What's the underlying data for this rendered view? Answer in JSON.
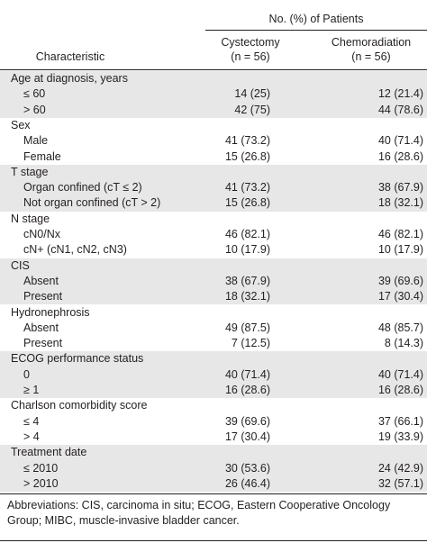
{
  "header": {
    "group_label": "No. (%) of Patients",
    "characteristic": "Characteristic",
    "columns": [
      {
        "name": "Cystectomy",
        "n": "(n = 56)"
      },
      {
        "name": "Chemoradiation",
        "n": "(n = 56)"
      }
    ]
  },
  "groups": [
    {
      "label": "Age at diagnosis, years",
      "rows": [
        {
          "label": "≤ 60",
          "values": [
            "14 (25)",
            "12 (21.4)"
          ]
        },
        {
          "label": "> 60",
          "values": [
            "42 (75)",
            "44 (78.6)"
          ]
        }
      ]
    },
    {
      "label": "Sex",
      "rows": [
        {
          "label": "Male",
          "values": [
            "41 (73.2)",
            "40 (71.4)"
          ]
        },
        {
          "label": "Female",
          "values": [
            "15 (26.8)",
            "16 (28.6)"
          ]
        }
      ]
    },
    {
      "label": "T stage",
      "rows": [
        {
          "label": "Organ confined (cT ≤ 2)",
          "values": [
            "41 (73.2)",
            "38 (67.9)"
          ]
        },
        {
          "label": "Not organ confined (cT > 2)",
          "values": [
            "15 (26.8)",
            "18 (32.1)"
          ]
        }
      ]
    },
    {
      "label": "N stage",
      "rows": [
        {
          "label": "cN0/Nx",
          "values": [
            "46 (82.1)",
            "46 (82.1)"
          ]
        },
        {
          "label": "cN+ (cN1, cN2, cN3)",
          "values": [
            "10 (17.9)",
            "10 (17.9)"
          ]
        }
      ]
    },
    {
      "label": "CIS",
      "rows": [
        {
          "label": "Absent",
          "values": [
            "38 (67.9)",
            "39 (69.6)"
          ]
        },
        {
          "label": "Present",
          "values": [
            "18 (32.1)",
            "17 (30.4)"
          ]
        }
      ]
    },
    {
      "label": "Hydronephrosis",
      "rows": [
        {
          "label": "Absent",
          "values": [
            "49 (87.5)",
            "48 (85.7)"
          ]
        },
        {
          "label": "Present",
          "values": [
            "7 (12.5)",
            "8 (14.3)"
          ]
        }
      ]
    },
    {
      "label": "ECOG performance status",
      "rows": [
        {
          "label": "0",
          "values": [
            "40 (71.4)",
            "40 (71.4)"
          ]
        },
        {
          "label": "≥ 1",
          "values": [
            "16 (28.6)",
            "16 (28.6)"
          ]
        }
      ]
    },
    {
      "label": "Charlson comorbidity score",
      "rows": [
        {
          "label": "≤ 4",
          "values": [
            "39 (69.6)",
            "37 (66.1)"
          ]
        },
        {
          "label": "> 4",
          "values": [
            "17 (30.4)",
            "19 (33.9)"
          ]
        }
      ]
    },
    {
      "label": "Treatment date",
      "rows": [
        {
          "label": "≤ 2010",
          "values": [
            "30 (53.6)",
            "24 (42.9)"
          ]
        },
        {
          "label": "> 2010",
          "values": [
            "26 (46.4)",
            "32 (57.1)"
          ]
        }
      ]
    }
  ],
  "footnote": "Abbreviations: CIS, carcinoma in situ; ECOG, Eastern Cooperative Oncology Group; MIBC, muscle-invasive bladder cancer."
}
